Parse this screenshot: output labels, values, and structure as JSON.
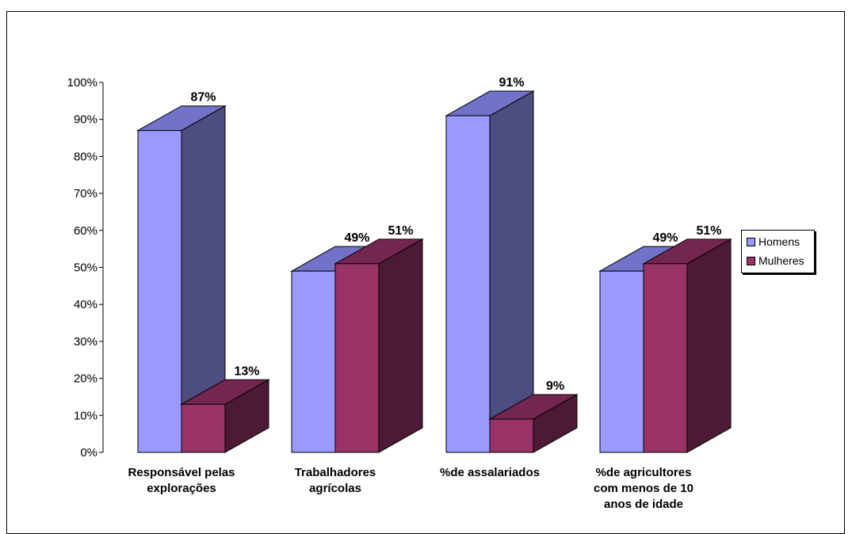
{
  "chart_data": {
    "type": "bar",
    "categories": [
      [
        "Responsável pelas",
        "explorações"
      ],
      [
        "Trabalhadores",
        "agrícolas"
      ],
      [
        "%de assalariados"
      ],
      [
        "%de agricultores",
        "com menos de 10",
        "anos de idade"
      ]
    ],
    "series": [
      {
        "name": "Homens",
        "values": [
          87,
          49,
          91,
          49
        ],
        "labels": [
          "87%",
          "49%",
          "91%",
          "49%"
        ],
        "color": "#9999ff",
        "top_color": "#7272c8",
        "side_color": "#4d4d80"
      },
      {
        "name": "Mulheres",
        "values": [
          13,
          51,
          9,
          51
        ],
        "labels": [
          "13%",
          "51%",
          "9%",
          "51%"
        ],
        "color": "#993366",
        "top_color": "#732650",
        "side_color": "#4d1a35"
      }
    ],
    "y_ticks": [
      "0%",
      "10%",
      "20%",
      "30%",
      "40%",
      "50%",
      "60%",
      "70%",
      "80%",
      "90%",
      "100%"
    ],
    "ylim": [
      0,
      100
    ],
    "legend_position": "right",
    "grid": false,
    "title": "",
    "xlabel": "",
    "ylabel": ""
  }
}
